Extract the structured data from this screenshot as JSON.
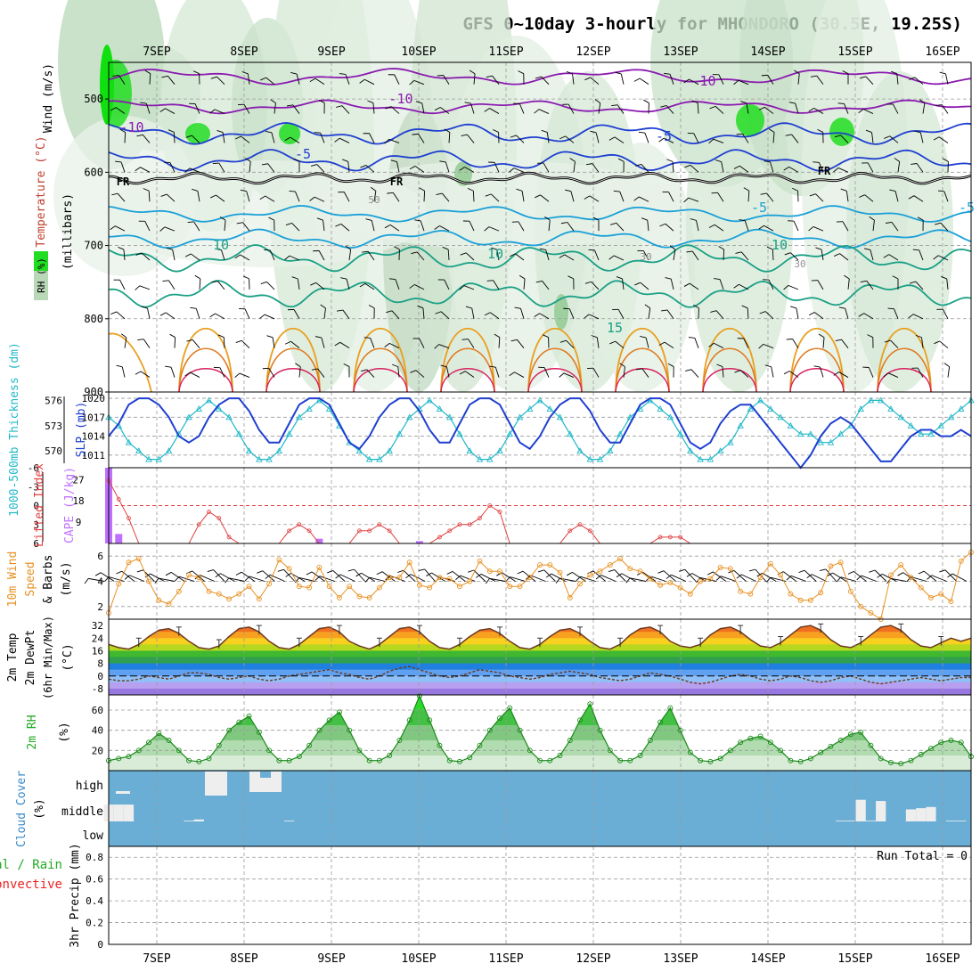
{
  "title": "GFS 0~10day 3-hourly for MHONDORO (30.5E, 19.25S)",
  "date_labels": [
    "7SEP",
    "8SEP",
    "9SEP",
    "10SEP",
    "11SEP",
    "12SEP",
    "13SEP",
    "14SEP",
    "15SEP",
    "16SEP"
  ],
  "colors": {
    "grid": "#9a9a9a",
    "frame": "#000000",
    "rh_green_dark": "#2f8f2f",
    "rh_green_bright": "#22dd22",
    "freezing_line": "#000000",
    "temp_cold_purple": "#8a1ab0",
    "temp_blue": "#1f3fd0",
    "temp_cyan": "#1aa0d8",
    "temp_teal": "#1aa085",
    "temp_orange": "#e8a020",
    "temp_red": "#d82060",
    "thickness": "#22b8c8",
    "slp": "#1f3fd0",
    "lifted_index": "#e04040",
    "cape": "#c070ff",
    "wind_speed": "#e89020",
    "cloud_blue": "#6aaed6",
    "precip_total": "#22aa22",
    "precip_conv": "#ee2222"
  },
  "panels": {
    "upper_air": {
      "ylabel_wind": "Wind (m/s)",
      "ylabel_temp": "Temperature (°C)",
      "ylabel_mb": "(millibars)",
      "legend_rh": "RH (%)",
      "yticks": [
        "500",
        "600",
        "700",
        "800",
        "900"
      ],
      "contour_labels": [
        "-10",
        "-10",
        "-10",
        "-5",
        "-5",
        "-5",
        "FR",
        "FR",
        "FR",
        "-5",
        "10",
        "10",
        "10",
        "15",
        "50",
        "30",
        "30"
      ]
    },
    "thickness_slp": {
      "ylabel_thickness": "1000-500mb Thickness (dm)",
      "ylabel_slp": "SLP (mb)",
      "yticks_thickness": [
        "576",
        "573",
        "570"
      ],
      "yticks_slp": [
        "1020",
        "1017",
        "1014",
        "1011"
      ]
    },
    "lifted_cape": {
      "ylabel_li": "Lifted Index",
      "ylabel_cape": "CAPE (J/kg)",
      "yticks_li": [
        "-6",
        "-3",
        "0",
        "3",
        "6"
      ],
      "yticks_cape": [
        "27",
        "18",
        "9"
      ]
    },
    "wind10m": {
      "ylabel1": "10m Wind",
      "ylabel2": "Speed",
      "ylabel3": "& Barbs",
      "unit": "(m/s)",
      "yticks": [
        "6",
        "4",
        "2"
      ]
    },
    "temp2m": {
      "ylabel1": "2m Temp",
      "ylabel2": "2m DewPt",
      "ylabel3": "(6hr Min/Max)",
      "unit": "(°C)",
      "yticks": [
        "32",
        "24",
        "16",
        "8",
        "0",
        "-8"
      ]
    },
    "rh2m": {
      "ylabel": "2m RH",
      "unit": "(%)",
      "yticks": [
        "60",
        "40",
        "20"
      ]
    },
    "cloud": {
      "ylabel": "Cloud Cover",
      "unit": "(%)",
      "levels": [
        "high",
        "middle",
        "low"
      ]
    },
    "precip": {
      "ylabel1": "Total / Rain",
      "ylabel2": "Convective",
      "ylabel3": "3hr Precip (mm)",
      "yticks": [
        "0.8",
        "0.6",
        "0.4",
        "0.2",
        "0"
      ],
      "run_total": "Run Total = 0"
    }
  },
  "chart_data": [
    {
      "type": "line",
      "title": "1000-500mb Thickness (dm) / SLP (mb)",
      "x": "3-hourly steps from 6 SEP 12Z",
      "series": [
        {
          "name": "1000-500mb Thickness (dm)",
          "axis": "left",
          "ylim": [
            568,
            577
          ],
          "values": [
            574,
            573,
            571,
            570,
            569,
            569,
            570,
            572,
            574,
            575,
            576,
            575,
            574,
            572,
            570,
            569,
            569,
            570,
            572,
            574,
            575,
            576,
            575,
            573,
            571,
            570,
            569,
            569,
            570,
            572,
            574,
            575,
            576,
            575,
            574,
            572,
            570,
            569,
            569,
            570,
            572,
            574,
            575,
            576,
            575,
            574,
            572,
            570,
            569,
            569,
            570,
            572,
            574,
            575,
            576,
            575,
            574,
            572,
            570,
            569,
            569,
            570,
            571,
            573,
            575,
            576,
            575,
            574,
            573,
            572,
            572,
            571,
            571,
            572,
            573,
            575,
            576,
            576,
            575,
            574,
            573,
            572,
            572,
            573,
            574,
            575,
            576
          ]
        },
        {
          "name": "SLP (mb)",
          "axis": "right",
          "ylim": [
            1009,
            1021
          ],
          "values": [
            1014,
            1016,
            1019,
            1020,
            1020,
            1019,
            1017,
            1014,
            1013,
            1014,
            1017,
            1019,
            1020,
            1020,
            1018,
            1015,
            1013,
            1013,
            1016,
            1019,
            1020,
            1020,
            1019,
            1016,
            1013,
            1012,
            1014,
            1017,
            1019,
            1020,
            1020,
            1018,
            1015,
            1013,
            1013,
            1016,
            1019,
            1020,
            1020,
            1019,
            1016,
            1013,
            1012,
            1014,
            1017,
            1019,
            1020,
            1020,
            1018,
            1015,
            1013,
            1013,
            1016,
            1019,
            1020,
            1020,
            1019,
            1016,
            1013,
            1012,
            1013,
            1016,
            1018,
            1019,
            1019,
            1017,
            1015,
            1013,
            1011,
            1009,
            1011,
            1014,
            1016,
            1017,
            1016,
            1014,
            1012,
            1010,
            1010,
            1012,
            1014,
            1015,
            1015,
            1014,
            1014,
            1015,
            1014
          ]
        }
      ]
    },
    {
      "type": "line",
      "title": "Lifted Index / CAPE (J/kg)",
      "series": [
        {
          "name": "Lifted Index",
          "ylim": [
            6,
            -6
          ],
          "values": [
            -4,
            -1,
            2,
            6,
            6,
            6,
            6,
            6,
            6,
            3,
            1,
            2,
            5,
            6,
            6,
            6,
            6,
            6,
            4,
            3,
            4,
            6,
            6,
            6,
            6,
            4,
            4,
            3,
            4,
            6,
            6,
            6,
            6,
            5,
            4,
            3,
            3,
            2,
            0,
            1,
            6,
            6,
            6,
            6,
            6,
            6,
            4,
            3,
            4,
            6,
            6,
            6,
            6,
            6,
            6,
            5,
            5,
            5,
            6,
            6,
            6,
            6,
            6,
            6,
            6,
            6,
            6,
            6,
            6,
            6,
            6,
            6,
            6,
            6,
            6,
            6,
            6,
            6,
            6,
            6,
            6,
            6,
            6,
            6,
            6,
            6,
            6
          ]
        },
        {
          "name": "CAPE (J/kg)",
          "ylim": [
            0,
            32
          ],
          "values": [
            32,
            4,
            0,
            0,
            0,
            0,
            0,
            0,
            0,
            0,
            0,
            0,
            0,
            0,
            0,
            0,
            0,
            0,
            0,
            0,
            0,
            2,
            0,
            0,
            0,
            0,
            0,
            0,
            0,
            0,
            0,
            1,
            0,
            0,
            0,
            0,
            0,
            0,
            0,
            0,
            0,
            0,
            0,
            0,
            0,
            0,
            0,
            0,
            0,
            0,
            0,
            0,
            0,
            0,
            0,
            0,
            0,
            0,
            0,
            0,
            0,
            0,
            0,
            0,
            0,
            0,
            0,
            0,
            0,
            0,
            0,
            0,
            0,
            0,
            0,
            0,
            0,
            0,
            0,
            0,
            0,
            0,
            0,
            0,
            0,
            0,
            0
          ]
        }
      ]
    },
    {
      "type": "line",
      "title": "10m Wind Speed (m/s)",
      "ylim": [
        1,
        7
      ],
      "values": [
        1.5,
        3.8,
        5.5,
        5.8,
        4.0,
        2.5,
        2.2,
        3.2,
        4.5,
        4.3,
        3.2,
        3.0,
        2.6,
        3.0,
        3.6,
        2.6,
        3.8,
        5.7,
        5.0,
        3.6,
        3.5,
        5.1,
        3.6,
        2.7,
        3.6,
        2.8,
        2.7,
        3.5,
        4.3,
        4.3,
        5.5,
        3.7,
        3.5,
        4.3,
        4.2,
        3.6,
        4.0,
        5.6,
        4.8,
        4.8,
        3.6,
        3.6,
        4.3,
        5.3,
        5.3,
        4.7,
        2.7,
        3.8,
        4.5,
        4.8,
        5.3,
        5.8,
        5.0,
        4.8,
        4.2,
        3.7,
        3.9,
        3.5,
        3.0,
        4.0,
        4.2,
        5.1,
        5.0,
        3.2,
        3.0,
        4.3,
        5.4,
        4.5,
        3.0,
        2.5,
        2.5,
        3.1,
        5.2,
        5.5,
        3.2,
        2.0,
        1.5,
        1.0,
        4.5,
        5.3,
        4.3,
        3.5,
        2.7,
        3.0,
        2.4,
        5.6,
        6.3
      ]
    },
    {
      "type": "line",
      "title": "2m Temp / 2m DewPt (°C)",
      "ylim": [
        -12,
        36
      ],
      "series": [
        {
          "name": "2m Temp",
          "values": [
            20,
            18,
            17,
            20,
            25,
            29,
            30,
            27,
            22,
            18,
            17,
            19,
            25,
            30,
            31,
            28,
            22,
            18,
            17,
            20,
            25,
            30,
            31,
            28,
            22,
            19,
            17,
            20,
            25,
            30,
            31,
            28,
            22,
            18,
            17,
            20,
            25,
            29,
            30,
            27,
            22,
            18,
            17,
            20,
            25,
            29,
            30,
            27,
            22,
            18,
            17,
            20,
            26,
            30,
            31,
            28,
            22,
            19,
            18,
            20,
            26,
            30,
            31,
            28,
            23,
            19,
            18,
            21,
            26,
            31,
            32,
            29,
            23,
            19,
            18,
            21,
            26,
            31,
            32,
            29,
            23,
            19,
            18,
            21,
            24,
            22,
            24
          ]
        },
        {
          "name": "2m DewPt",
          "values": [
            -2,
            -3,
            -3,
            -2,
            0,
            -1,
            -2,
            0,
            2,
            2,
            1,
            -1,
            -2,
            -1,
            0,
            -2,
            -3,
            -2,
            0,
            1,
            2,
            3,
            4,
            2,
            1,
            -1,
            -2,
            0,
            3,
            5,
            6,
            4,
            2,
            0,
            -1,
            0,
            2,
            4,
            3,
            2,
            0,
            -1,
            -2,
            -1,
            1,
            2,
            3,
            2,
            1,
            -1,
            -2,
            -3,
            -2,
            0,
            2,
            1,
            0,
            -2,
            -4,
            -5,
            -4,
            -2,
            0,
            1,
            0,
            -2,
            -3,
            -2,
            0,
            -1,
            -3,
            -4,
            -3,
            -1,
            0,
            -2,
            -4,
            -5,
            -4,
            -3,
            -2,
            -1,
            -2,
            -3,
            -2,
            -1,
            -1
          ]
        }
      ]
    },
    {
      "type": "area",
      "title": "2m RH (%)",
      "ylim": [
        0,
        75
      ],
      "values": [
        10,
        12,
        14,
        20,
        28,
        37,
        30,
        20,
        10,
        9,
        12,
        25,
        40,
        48,
        54,
        38,
        20,
        10,
        10,
        14,
        25,
        40,
        50,
        58,
        40,
        20,
        10,
        10,
        15,
        30,
        50,
        74,
        50,
        25,
        10,
        9,
        13,
        25,
        40,
        52,
        62,
        40,
        20,
        10,
        10,
        15,
        30,
        50,
        66,
        40,
        20,
        10,
        10,
        15,
        30,
        48,
        62,
        40,
        18,
        10,
        9,
        12,
        20,
        28,
        32,
        34,
        28,
        20,
        10,
        9,
        12,
        18,
        24,
        30,
        36,
        38,
        25,
        12,
        8,
        7,
        10,
        16,
        22,
        28,
        30,
        28,
        14
      ]
    },
    {
      "type": "bar",
      "title": "Cloud Cover (%)",
      "series": [
        {
          "name": "high",
          "values": [
            8,
            0,
            0,
            0,
            0,
            0,
            0,
            0,
            0,
            0,
            0,
            0,
            0,
            0,
            0,
            0,
            0,
            0,
            0,
            0,
            0,
            0,
            0,
            0,
            0,
            0,
            0,
            0,
            0,
            0,
            0,
            0,
            0,
            0,
            0,
            0,
            0,
            0,
            0,
            0,
            0,
            0,
            0,
            0,
            0,
            0,
            0,
            0,
            0,
            0,
            0,
            0,
            0,
            0,
            0,
            0,
            0,
            0,
            0,
            0,
            0,
            0,
            0,
            0,
            0,
            0,
            0,
            0,
            0,
            0,
            0,
            0,
            0,
            0,
            0,
            0,
            0,
            0,
            0,
            0,
            0,
            0,
            0,
            0,
            0,
            0,
            0
          ]
        },
        {
          "name": "middle",
          "values": [
            70,
            70,
            70,
            0,
            0,
            0,
            0,
            0,
            3,
            8,
            0,
            0,
            0,
            0,
            0,
            0,
            0,
            0,
            3,
            0,
            0,
            0,
            0,
            0,
            0,
            0,
            0,
            0,
            0,
            0,
            0,
            0,
            0,
            0,
            0,
            0,
            0,
            0,
            0,
            0,
            0,
            0,
            0,
            0,
            0,
            0,
            0,
            0,
            0,
            0,
            0,
            0,
            0,
            0,
            0,
            0,
            0,
            0,
            0,
            0,
            0,
            0,
            0,
            0,
            0,
            0,
            0,
            0,
            0,
            0,
            0,
            0,
            0,
            3,
            3,
            90,
            3,
            85,
            0,
            0,
            50,
            55,
            60,
            0,
            3,
            3,
            0
          ]
        }
      ]
    },
    {
      "type": "bar",
      "title": "3hr Precip (mm)",
      "ylim": [
        0,
        0.9
      ],
      "values": [
        0,
        0,
        0,
        0,
        0,
        0,
        0,
        0,
        0,
        0,
        0,
        0,
        0,
        0,
        0,
        0,
        0,
        0,
        0,
        0,
        0,
        0,
        0,
        0,
        0,
        0,
        0,
        0,
        0,
        0,
        0,
        0,
        0,
        0,
        0,
        0,
        0,
        0,
        0,
        0,
        0,
        0,
        0,
        0,
        0,
        0,
        0,
        0,
        0,
        0,
        0,
        0,
        0,
        0,
        0,
        0,
        0,
        0,
        0,
        0,
        0,
        0,
        0,
        0,
        0,
        0,
        0,
        0,
        0,
        0,
        0,
        0,
        0,
        0,
        0,
        0,
        0,
        0,
        0,
        0,
        0,
        0,
        0,
        0,
        0,
        0,
        0
      ]
    }
  ]
}
